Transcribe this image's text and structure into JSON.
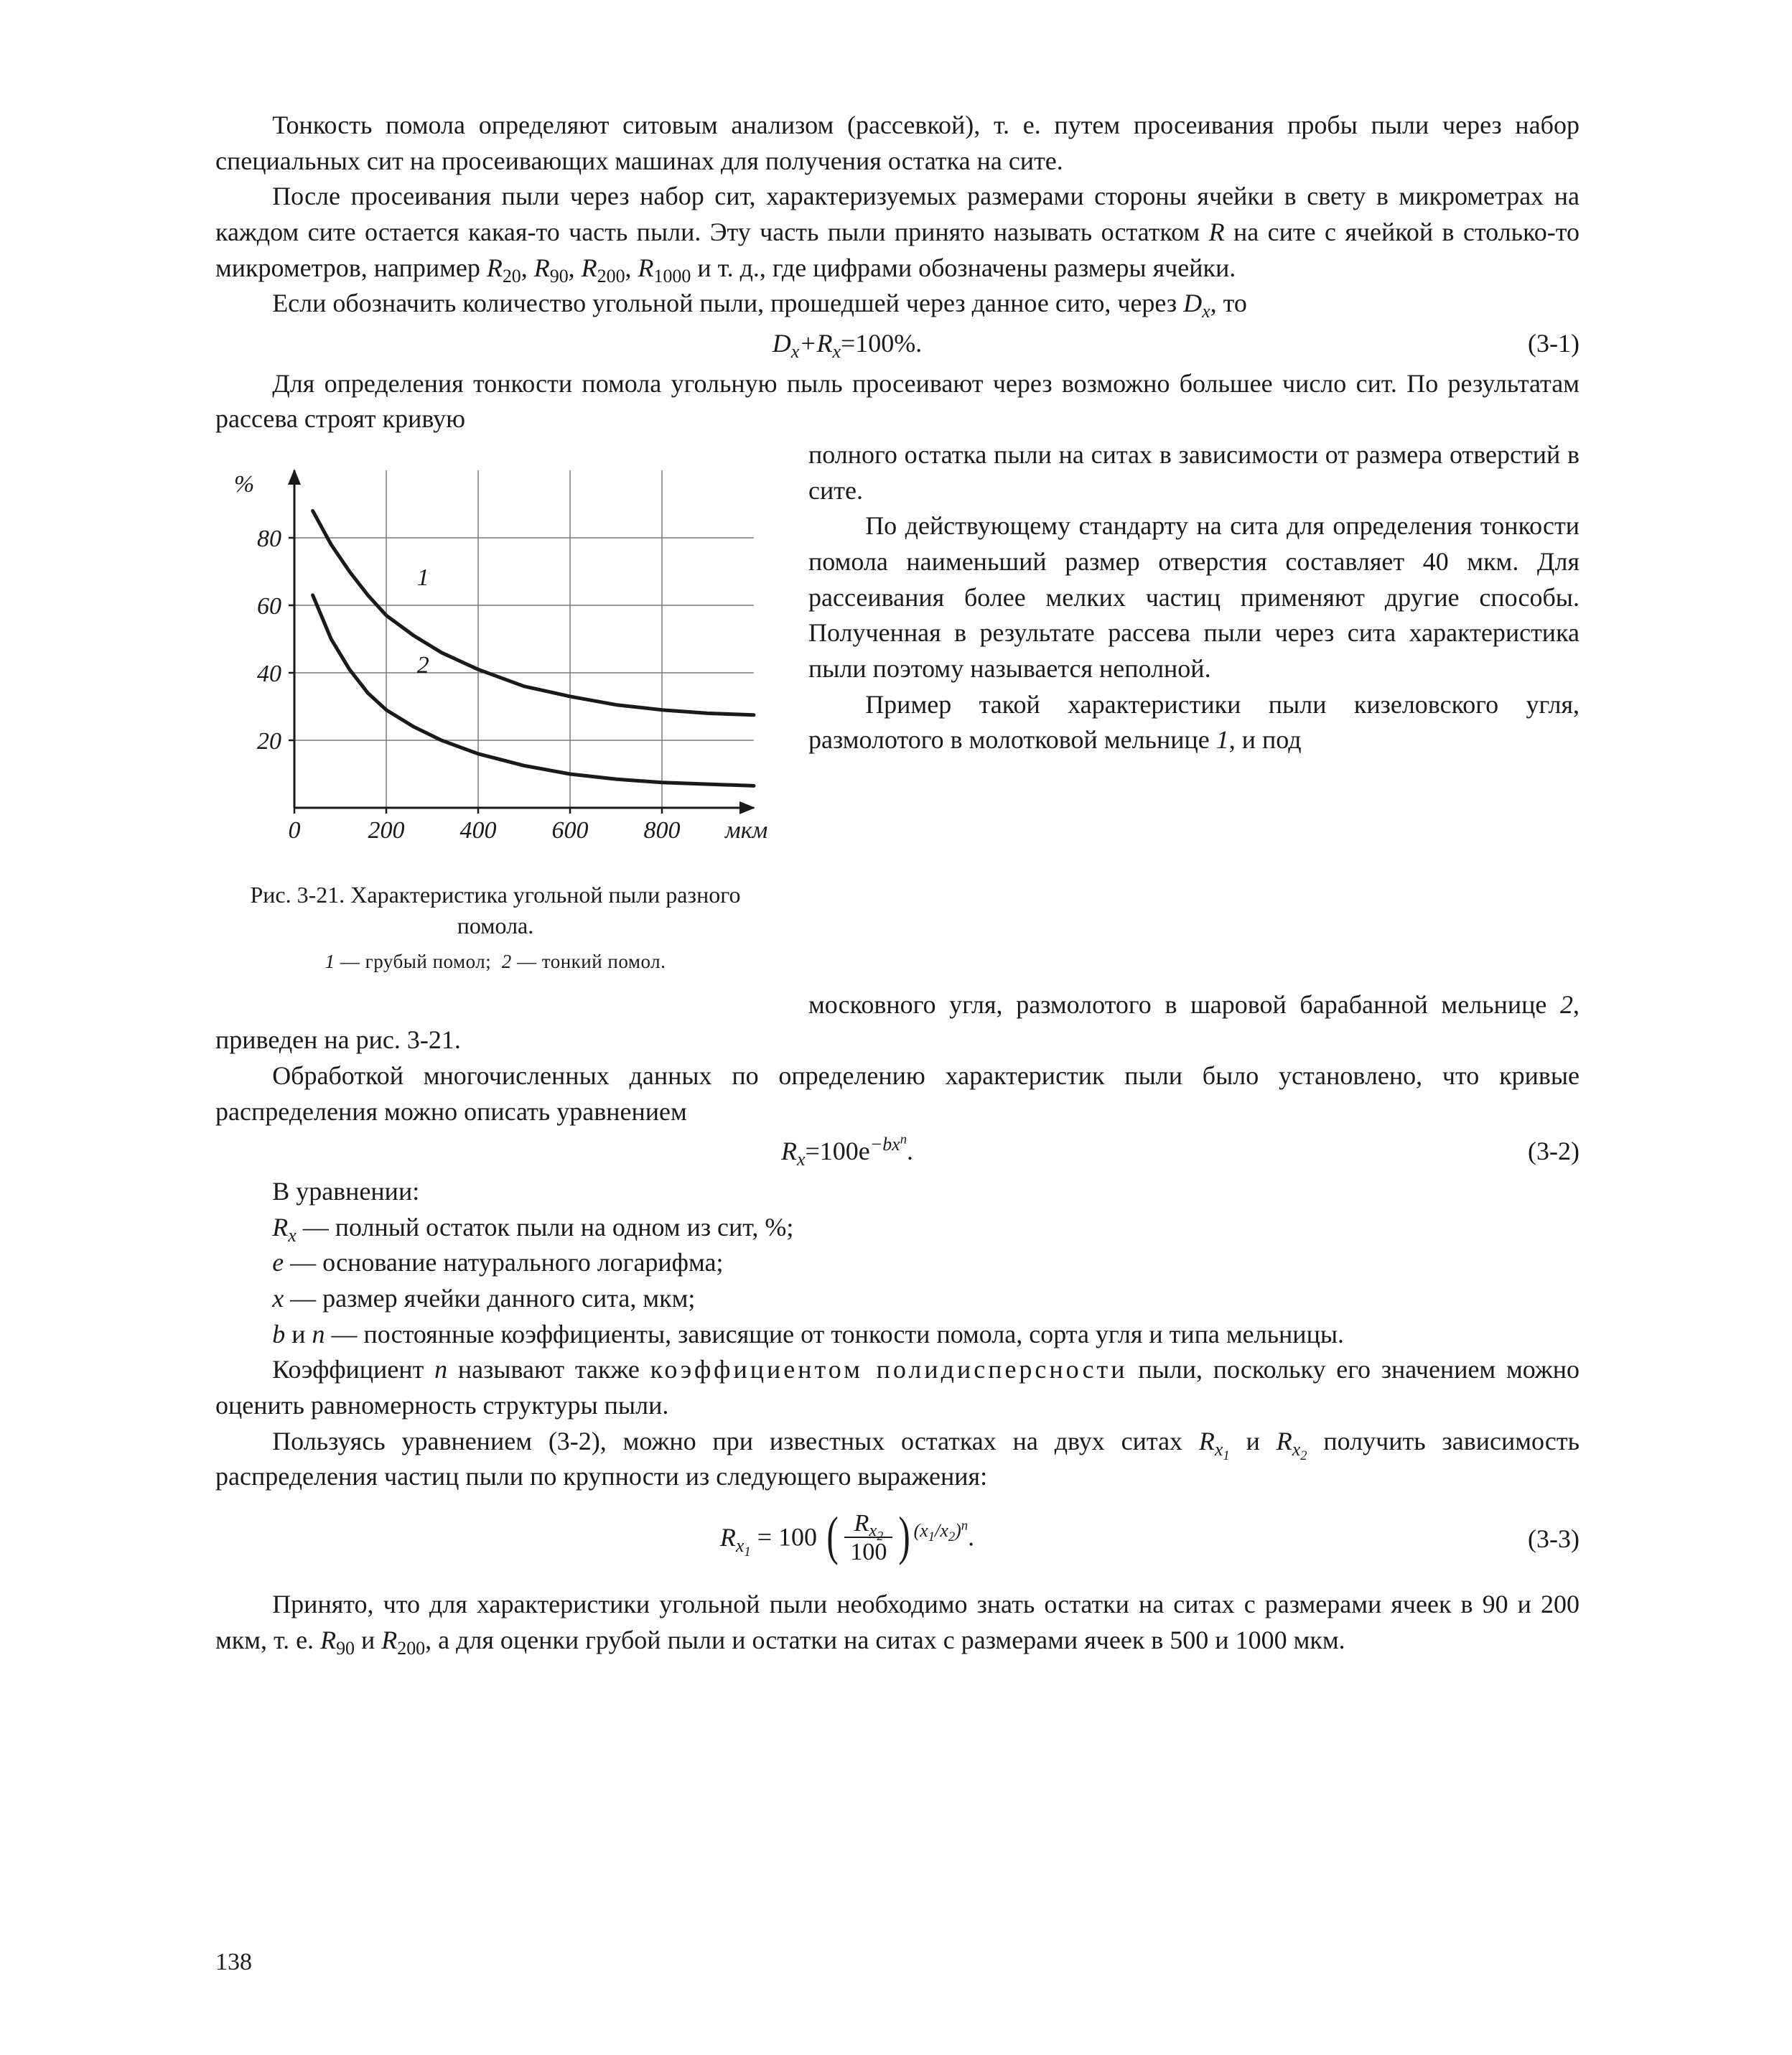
{
  "para1": "Тонкость помола определяют ситовым анализом (рассевкой), т. е. путем просеивания пробы пыли через набор специальных сит на просеивающих машинах для получения остатка на сите.",
  "para2_a": "После просеивания пыли через набор сит, характеризуемых размерами стороны ячейки в свету в микрометрах на каждом сите остается какая-то часть пыли. Эту часть пыли принято называть остатком ",
  "para2_b": " на сите с ячейкой в столько-то микрометров, например ",
  "para2_c": " и т. д., где цифрами обозначены размеры ячейки.",
  "para3_a": "Если обозначить количество угольной пыли, прошедшей через данное сито, через ",
  "para3_b": ", то",
  "eq1_lhs": "D",
  "eq1_plus": "+R",
  "eq1_rhs": "=100%.",
  "eq1_num": "(3-1)",
  "para4": "Для определения тонкости помола угольную пыль просеивают через возможно большее число сит. По результатам рассева строят кривую",
  "right1": "полного остатка пыли на ситах в зависимости от размера отверстий в сите.",
  "right2": "По действующему стандарту на сита для определения тонкости помола наименьший размер отверстия составляет 40 мкм. Для рассеивания более мелких частиц применяют другие способы. Полученная в результате рассева пыли через сита характеристика пыли поэтому называется неполной.",
  "right3_a": "Пример такой характеристики пыли кизеловского угля, размолотого в молотковой мельнице ",
  "right3_b": ", и под",
  "para5_a": "московного угля, размолотого в шаровой барабанной мельнице ",
  "para5_b": ", приведен на рис. 3-21.",
  "para6": "Обработкой многочисленных данных по определению характеристик пыли было установлено, что кривые распределения можно описать уравнением",
  "eq2_a": "R",
  "eq2_b": "=100e",
  "eq2_num": "(3-2)",
  "defs_head": "В уравнении:",
  "def1_a": "R",
  "def1_b": " — полный остаток пыли на одном из сит, %;",
  "def2_a": "e",
  "def2_b": " — основание натурального логарифма;",
  "def3_a": "x",
  "def3_b": " — размер ячейки данного сита, мкм;",
  "def4_a": "b",
  "def4_mid": " и ",
  "def4_n": "n",
  "def4_b": " — постоянные коэффициенты, зависящие от тонкости помола, сорта угля и типа мельницы.",
  "para7_a": "Коэффициент ",
  "para7_n": "n",
  "para7_b": " называют также ",
  "para7_term": "коэффициентом полидисперсности",
  "para7_c": " пыли, поскольку его значением можно оценить равномерность структуры пыли.",
  "para8_a": "Пользуясь уравнением (3-2), можно при известных остатках на двух ситах ",
  "para8_b": " и ",
  "para8_c": " получить зависимость распределения частиц пыли по крупности из следующего выражения:",
  "eq3_lhs": "R",
  "eq3_eq": " = 100 ",
  "eq3_frac_num": "R",
  "eq3_frac_den": "100",
  "eq3_num": "(3-3)",
  "para9_a": "Принято, что для характеристики угольной пыли необходимо знать остатки на ситах с размерами ячеек в 90 и 200 мкм, т. е. ",
  "para9_b": " и ",
  "para9_c": ", а для оценки грубой пыли и остатки на ситах с размерами ячеек в 500 и 1000 мкм.",
  "page_number": "138",
  "chart": {
    "type": "line",
    "title": "",
    "caption": "Рис. 3-21. Характеристика угольной пыли разного помола.",
    "caption_sub": "1 — грубый помол;  2 — тонкий помол.",
    "x_label": "мкм",
    "y_label": "%",
    "x_ticks": [
      "0",
      "200",
      "400",
      "600",
      "800"
    ],
    "x_tick_vals": [
      0,
      200,
      400,
      600,
      800
    ],
    "y_ticks": [
      "20",
      "40",
      "60",
      "80"
    ],
    "y_tick_vals": [
      20,
      40,
      60,
      80
    ],
    "xlim": [
      0,
      1000
    ],
    "ylim": [
      0,
      100
    ],
    "axis_color": "#1a1a1a",
    "grid_color": "#7a7a7a",
    "grid_stroke_width": 1.5,
    "axis_stroke_width": 3,
    "curve_stroke_width": 5,
    "background_color": "#ffffff",
    "label_fontsize": 34,
    "series": [
      {
        "name": "1",
        "color": "#1a1a1a",
        "label_xy": [
          280,
          66
        ],
        "points": [
          [
            40,
            88
          ],
          [
            80,
            78
          ],
          [
            120,
            70
          ],
          [
            160,
            63
          ],
          [
            200,
            57
          ],
          [
            260,
            51
          ],
          [
            320,
            46
          ],
          [
            400,
            41
          ],
          [
            500,
            36
          ],
          [
            600,
            33
          ],
          [
            700,
            30.5
          ],
          [
            800,
            29
          ],
          [
            900,
            28
          ],
          [
            1000,
            27.5
          ]
        ]
      },
      {
        "name": "2",
        "color": "#1a1a1a",
        "label_xy": [
          280,
          40
        ],
        "points": [
          [
            40,
            63
          ],
          [
            80,
            50
          ],
          [
            120,
            41
          ],
          [
            160,
            34
          ],
          [
            200,
            29
          ],
          [
            260,
            24
          ],
          [
            320,
            20
          ],
          [
            400,
            16
          ],
          [
            500,
            12.5
          ],
          [
            600,
            10
          ],
          [
            700,
            8.5
          ],
          [
            800,
            7.5
          ],
          [
            900,
            7
          ],
          [
            1000,
            6.5
          ]
        ]
      }
    ]
  }
}
